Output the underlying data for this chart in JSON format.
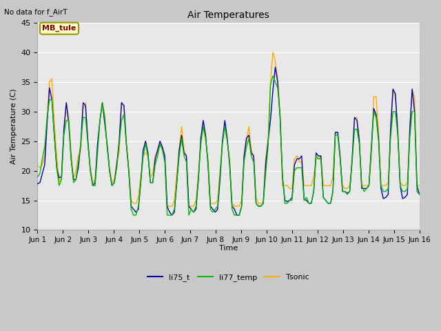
{
  "title": "Air Temperatures",
  "ylabel": "Air Temperature (C)",
  "xlabel": "Time",
  "top_left_text": "No data for f_AirT",
  "annotation_box": "MB_tule",
  "ylim": [
    10,
    45
  ],
  "yticks": [
    10,
    15,
    20,
    25,
    30,
    35,
    40,
    45
  ],
  "fig_bg_color": "#c8c8c8",
  "plot_bg_color": "#e8e8e8",
  "grid_color": "#ffffff",
  "x_labels": [
    "Jun 1",
    "Jun 2",
    "Jun 3",
    "Jun 4",
    "Jun 5",
    "Jun 6",
    "Jun 7",
    "Jun 8",
    "Jun 9",
    "Jun 10",
    "Jun 11",
    "Jun 12",
    "Jun 13",
    "Jun 14",
    "Jun 15",
    "Jun 16"
  ],
  "line_colors": [
    "#0000bb",
    "#00bb00",
    "#ffaa00"
  ],
  "line_width": 1.0,
  "x_tick_positions": [
    0,
    1,
    2,
    3,
    4,
    5,
    6,
    7,
    8,
    9,
    10,
    11,
    12,
    13,
    14,
    15
  ],
  "n_per_day": 16,
  "li75_t": [
    17.8,
    18.0,
    19.5,
    21.0,
    28.0,
    34.0,
    32.0,
    26.0,
    20.5,
    18.8,
    19.0,
    27.0,
    31.5,
    28.0,
    22.0,
    18.5,
    18.5,
    20.5,
    24.5,
    31.5,
    31.0,
    25.0,
    20.0,
    17.5,
    18.0,
    24.5,
    28.5,
    31.5,
    28.0,
    24.5,
    20.0,
    17.5,
    18.0,
    21.0,
    25.0,
    31.5,
    31.0,
    24.5,
    20.0,
    14.0,
    13.5,
    13.0,
    13.5,
    18.0,
    23.5,
    25.0,
    23.0,
    18.0,
    18.0,
    22.0,
    23.5,
    25.0,
    24.0,
    22.5,
    14.0,
    13.0,
    12.5,
    13.0,
    18.0,
    23.5,
    26.0,
    23.0,
    22.5,
    14.0,
    13.5,
    13.0,
    13.5,
    18.5,
    25.5,
    28.5,
    26.0,
    21.0,
    14.0,
    13.5,
    13.0,
    13.5,
    18.5,
    25.0,
    28.5,
    25.5,
    21.0,
    14.0,
    13.5,
    12.5,
    12.5,
    14.0,
    22.5,
    25.5,
    26.0,
    23.0,
    22.5,
    14.5,
    14.0,
    14.0,
    14.5,
    21.0,
    25.0,
    28.5,
    33.5,
    37.5,
    35.0,
    29.0,
    19.0,
    15.0,
    14.8,
    15.0,
    15.5,
    21.0,
    22.0,
    22.0,
    22.5,
    15.2,
    15.0,
    14.5,
    14.5,
    16.5,
    23.0,
    22.5,
    22.5,
    15.5,
    15.0,
    14.5,
    14.5,
    16.5,
    26.5,
    26.5,
    22.5,
    16.5,
    16.5,
    16.2,
    16.5,
    22.0,
    29.0,
    28.5,
    25.0,
    17.0,
    17.0,
    17.0,
    17.5,
    24.0,
    30.5,
    29.5,
    25.5,
    17.0,
    15.3,
    15.5,
    16.0,
    27.0,
    33.8,
    33.0,
    26.5,
    17.5,
    15.3,
    15.5,
    16.0,
    27.0,
    33.8,
    30.0,
    17.5,
    16.0
  ],
  "li77_temp": [
    19.0,
    19.5,
    22.0,
    24.0,
    29.0,
    32.0,
    32.0,
    26.0,
    20.5,
    17.5,
    18.5,
    26.0,
    28.5,
    28.5,
    22.0,
    18.0,
    18.5,
    21.5,
    24.5,
    29.0,
    29.0,
    24.5,
    20.0,
    17.5,
    17.5,
    23.0,
    28.5,
    31.5,
    29.0,
    24.0,
    20.0,
    17.5,
    18.0,
    20.5,
    24.5,
    28.5,
    29.5,
    24.5,
    20.0,
    13.5,
    12.5,
    12.5,
    14.0,
    18.0,
    22.5,
    24.5,
    22.5,
    18.0,
    18.0,
    21.0,
    22.5,
    24.5,
    23.5,
    21.5,
    12.5,
    12.5,
    12.5,
    13.5,
    18.0,
    22.5,
    25.5,
    22.5,
    21.5,
    12.5,
    13.5,
    13.0,
    14.0,
    19.0,
    24.5,
    27.5,
    25.5,
    21.5,
    13.5,
    13.0,
    13.5,
    14.0,
    19.5,
    24.5,
    27.5,
    25.0,
    21.5,
    13.5,
    12.5,
    12.5,
    12.5,
    14.0,
    21.5,
    24.0,
    25.5,
    22.5,
    21.5,
    14.5,
    14.0,
    14.0,
    14.5,
    19.5,
    24.0,
    34.5,
    36.0,
    35.0,
    34.0,
    29.5,
    19.0,
    14.5,
    14.5,
    15.0,
    15.0,
    20.0,
    20.5,
    20.5,
    20.5,
    15.0,
    15.5,
    14.5,
    14.5,
    16.5,
    22.5,
    22.0,
    22.0,
    15.5,
    15.0,
    14.5,
    14.5,
    16.5,
    26.0,
    26.0,
    22.0,
    16.5,
    16.5,
    16.0,
    16.5,
    21.5,
    27.0,
    27.0,
    24.5,
    17.5,
    16.5,
    17.0,
    17.5,
    23.5,
    30.0,
    29.0,
    25.0,
    17.5,
    16.5,
    16.5,
    17.0,
    25.5,
    30.0,
    30.0,
    26.0,
    17.5,
    16.5,
    16.5,
    17.0,
    25.5,
    30.0,
    30.0,
    16.5,
    16.0
  ],
  "Tsonic": [
    21.0,
    20.5,
    21.0,
    22.5,
    29.0,
    35.0,
    35.5,
    28.0,
    22.5,
    18.0,
    19.0,
    26.5,
    31.5,
    29.0,
    23.0,
    18.5,
    20.0,
    22.5,
    23.5,
    30.5,
    31.5,
    24.5,
    20.5,
    18.0,
    18.5,
    23.5,
    28.5,
    31.5,
    29.5,
    24.0,
    20.5,
    18.0,
    18.5,
    21.5,
    23.0,
    31.5,
    31.0,
    25.0,
    20.5,
    15.0,
    14.5,
    14.5,
    15.5,
    19.0,
    22.5,
    23.0,
    22.5,
    19.0,
    19.5,
    22.5,
    23.0,
    24.5,
    24.0,
    22.5,
    14.0,
    14.0,
    14.0,
    15.0,
    19.5,
    23.5,
    27.5,
    23.5,
    22.5,
    14.0,
    14.0,
    14.0,
    15.0,
    19.5,
    25.0,
    27.5,
    25.0,
    22.0,
    14.5,
    14.5,
    14.5,
    15.0,
    20.0,
    25.0,
    27.5,
    25.0,
    22.0,
    14.5,
    14.0,
    14.0,
    14.0,
    15.0,
    22.0,
    25.0,
    27.5,
    23.5,
    22.5,
    15.5,
    14.5,
    14.5,
    14.5,
    22.0,
    25.0,
    35.0,
    40.0,
    38.5,
    35.5,
    29.5,
    17.5,
    17.5,
    17.5,
    17.0,
    17.0,
    22.0,
    22.5,
    21.5,
    21.5,
    17.5,
    17.5,
    17.5,
    17.5,
    19.0,
    22.0,
    22.0,
    22.5,
    17.5,
    17.5,
    17.5,
    17.5,
    19.0,
    26.5,
    26.5,
    22.0,
    17.5,
    17.0,
    17.0,
    17.5,
    21.5,
    29.0,
    29.0,
    25.5,
    17.5,
    17.5,
    17.5,
    17.5,
    22.5,
    32.5,
    32.5,
    26.5,
    17.5,
    17.5,
    17.5,
    18.0,
    26.5,
    33.5,
    32.5,
    27.0,
    18.0,
    17.5,
    17.5,
    18.0,
    26.5,
    33.5,
    32.5,
    17.5,
    17.5
  ]
}
